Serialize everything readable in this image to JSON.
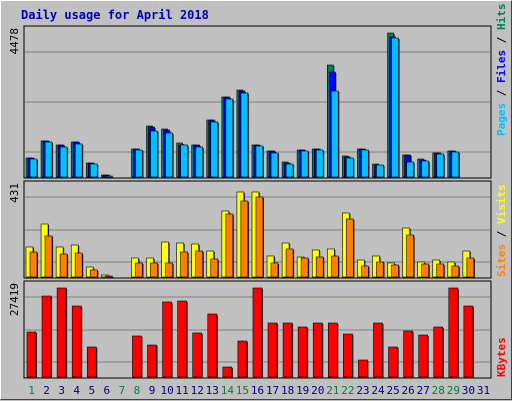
{
  "title": "Daily usage for April 2018",
  "colors": {
    "hits": "#00805c",
    "files": "#0000ff",
    "pages": "#00c0ff",
    "visits": "#ffff00",
    "sites": "#ff8000",
    "kbytes": "#ff0000",
    "title": "#0000b8",
    "weekend_label": "#008040",
    "weekday_label": "#000080"
  },
  "chart_data": [
    {
      "type": "bar",
      "name": "hits-files-pages",
      "ymax_label": "4478",
      "ylim": [
        0,
        4478
      ],
      "legend": [
        "Pages",
        "Files",
        "Hits"
      ],
      "categories": [
        "1",
        "2",
        "3",
        "4",
        "5",
        "6",
        "7",
        "8",
        "9",
        "10",
        "11",
        "12",
        "13",
        "14",
        "15",
        "16",
        "17",
        "18",
        "19",
        "20",
        "21",
        "22",
        "23",
        "24",
        "25",
        "26",
        "27",
        "28",
        "29",
        "30",
        "31"
      ],
      "series": [
        {
          "name": "Hits",
          "values": [
            580,
            1120,
            980,
            1090,
            420,
            60,
            0,
            870,
            1600,
            1500,
            1070,
            1000,
            1770,
            2480,
            2710,
            1000,
            820,
            480,
            850,
            860,
            3470,
            660,
            880,
            390,
            4480,
            670,
            560,
            760,
            800,
            0,
            0
          ]
        },
        {
          "name": "Files",
          "values": [
            580,
            1120,
            980,
            1090,
            420,
            60,
            0,
            870,
            1540,
            1460,
            1010,
            980,
            1770,
            2480,
            2660,
            980,
            800,
            430,
            850,
            860,
            3280,
            630,
            880,
            380,
            4350,
            670,
            540,
            750,
            800,
            0,
            0
          ]
        },
        {
          "name": "Pages",
          "values": [
            550,
            1080,
            930,
            1020,
            390,
            40,
            0,
            830,
            1430,
            1380,
            980,
            940,
            1700,
            2440,
            2620,
            950,
            740,
            390,
            800,
            830,
            2660,
            600,
            830,
            360,
            4320,
            480,
            500,
            720,
            780,
            0,
            0
          ]
        }
      ]
    },
    {
      "type": "bar",
      "name": "visits-sites",
      "ymax_label": "431",
      "ylim": [
        0,
        431
      ],
      "legend": [
        "Sites",
        "Visits"
      ],
      "categories": [
        "1",
        "2",
        "3",
        "4",
        "5",
        "6",
        "7",
        "8",
        "9",
        "10",
        "11",
        "12",
        "13",
        "14",
        "15",
        "16",
        "17",
        "18",
        "19",
        "20",
        "21",
        "22",
        "23",
        "24",
        "25",
        "26",
        "27",
        "28",
        "29",
        "30",
        "31"
      ],
      "series": [
        {
          "name": "Visits",
          "values": [
            145,
            255,
            145,
            155,
            50,
            10,
            0,
            90,
            90,
            170,
            165,
            160,
            125,
            320,
            410,
            410,
            100,
            165,
            95,
            130,
            135,
            310,
            80,
            100,
            70,
            235,
            75,
            80,
            75,
            125,
            0
          ]
        },
        {
          "name": "Sites",
          "values": [
            120,
            200,
            110,
            115,
            35,
            5,
            0,
            70,
            70,
            70,
            120,
            125,
            85,
            305,
            370,
            385,
            70,
            135,
            90,
            95,
            100,
            280,
            55,
            75,
            60,
            205,
            65,
            65,
            55,
            90,
            0
          ]
        }
      ]
    },
    {
      "type": "bar",
      "name": "kbytes",
      "ymax_label": "27419",
      "ylim": [
        0,
        27419
      ],
      "legend": [
        "KBytes"
      ],
      "categories": [
        "1",
        "2",
        "3",
        "4",
        "5",
        "6",
        "7",
        "8",
        "9",
        "10",
        "11",
        "12",
        "13",
        "14",
        "15",
        "16",
        "17",
        "18",
        "19",
        "20",
        "21",
        "22",
        "23",
        "24",
        "25",
        "26",
        "27",
        "28",
        "29",
        "30",
        "31"
      ],
      "series": [
        {
          "name": "KBytes",
          "values": [
            13800,
            25000,
            27400,
            22000,
            9300,
            0,
            0,
            12500,
            9800,
            23000,
            23500,
            13500,
            19500,
            3000,
            11000,
            27400,
            16500,
            16500,
            15300,
            16700,
            16700,
            13400,
            5200,
            16700,
            9300,
            14300,
            12800,
            15400,
            27400,
            22000,
            0
          ]
        }
      ]
    }
  ],
  "day_labels": [
    {
      "text": "1",
      "weekend": true
    },
    {
      "text": "2",
      "weekend": false
    },
    {
      "text": "3",
      "weekend": false
    },
    {
      "text": "4",
      "weekend": false
    },
    {
      "text": "5",
      "weekend": false
    },
    {
      "text": "6",
      "weekend": false
    },
    {
      "text": "7",
      "weekend": true
    },
    {
      "text": "8",
      "weekend": true
    },
    {
      "text": "9",
      "weekend": false
    },
    {
      "text": "10",
      "weekend": false
    },
    {
      "text": "11",
      "weekend": false
    },
    {
      "text": "12",
      "weekend": false
    },
    {
      "text": "13",
      "weekend": false
    },
    {
      "text": "14",
      "weekend": true
    },
    {
      "text": "15",
      "weekend": true
    },
    {
      "text": "16",
      "weekend": false
    },
    {
      "text": "17",
      "weekend": false
    },
    {
      "text": "18",
      "weekend": false
    },
    {
      "text": "19",
      "weekend": false
    },
    {
      "text": "20",
      "weekend": false
    },
    {
      "text": "21",
      "weekend": true
    },
    {
      "text": "22",
      "weekend": true
    },
    {
      "text": "23",
      "weekend": false
    },
    {
      "text": "24",
      "weekend": false
    },
    {
      "text": "25",
      "weekend": false
    },
    {
      "text": "26",
      "weekend": false
    },
    {
      "text": "27",
      "weekend": false
    },
    {
      "text": "28",
      "weekend": true
    },
    {
      "text": "29",
      "weekend": true
    },
    {
      "text": "30",
      "weekend": false
    },
    {
      "text": "31",
      "weekend": false
    }
  ]
}
